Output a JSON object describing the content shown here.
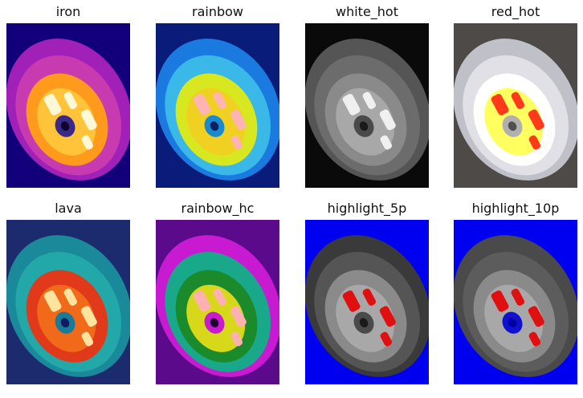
{
  "panels": [
    {
      "id": "iron",
      "title": "iron",
      "colors": {
        "background": "#12007a",
        "tire": "#a020b8",
        "tire_inner": "#c83ab0",
        "rim": "#ff9a1c",
        "rim_inner": "#ffc43a",
        "hot": "#fff8d8",
        "hub": "#3a2a88",
        "hub_center": "#120030"
      }
    },
    {
      "id": "rainbow",
      "title": "rainbow",
      "colors": {
        "background": "#0a1c7a",
        "tire": "#1a7ae0",
        "tire_inner": "#3ab8e8",
        "rim": "#d8e820",
        "rim_inner": "#f0d020",
        "hot": "#ffb4b4",
        "hub": "#1a8ad0",
        "hub_center": "#0a2060"
      }
    },
    {
      "id": "white_hot",
      "title": "white_hot",
      "colors": {
        "background": "#0a0a0a",
        "tire": "#555555",
        "tire_inner": "#6c6c6c",
        "rim": "#8a8a8a",
        "rim_inner": "#a8a8a8",
        "hot": "#f0f0f0",
        "hub": "#4a4a4a",
        "hub_center": "#1a1a1a"
      }
    },
    {
      "id": "red_hot",
      "title": "red_hot",
      "colors": {
        "background": "#4e4a48",
        "tire": "#c0c0c8",
        "tire_inner": "#e0e0e6",
        "rim": "#ffffff",
        "rim_inner": "#ffff60",
        "hot": "#ff3a1a",
        "hub": "#b0b0b0",
        "hub_center": "#505050"
      }
    },
    {
      "id": "lava",
      "title": "lava",
      "colors": {
        "background": "#1c2a6e",
        "tire": "#1a8a9a",
        "tire_inner": "#22a8a8",
        "rim": "#e03a1a",
        "rim_inner": "#f06a1a",
        "hot": "#ffe4a0",
        "hub": "#1a7a9a",
        "hub_center": "#101a60"
      }
    },
    {
      "id": "rainbow_hc",
      "title": "rainbow_hc",
      "colors": {
        "background": "#5a0a8a",
        "tire": "#c81ad0",
        "tire_inner": "#1aa88a",
        "rim": "#1a8a2a",
        "rim_inner": "#d8d81a",
        "hot": "#ffb0b0",
        "hub": "#c81ad0",
        "hub_center": "#200030"
      }
    },
    {
      "id": "highlight_5p",
      "title": "highlight_5p",
      "colors": {
        "background": "#0000f0",
        "tire": "#3a3a3a",
        "tire_inner": "#555555",
        "rim": "#8a8a8a",
        "rim_inner": "#a8a8a8",
        "hot": "#e01010",
        "hub": "#4a4a4a",
        "hub_center": "#1a1a1a"
      }
    },
    {
      "id": "highlight_10p",
      "title": "highlight_10p",
      "colors": {
        "background": "#0000f0",
        "tire": "#4a4a4a",
        "tire_inner": "#5c5c5c",
        "rim": "#8a8a8a",
        "rim_inner": "#a8a8a8",
        "hot": "#e01010",
        "hub": "#1010d0",
        "hub_center": "#0000a0"
      }
    }
  ]
}
